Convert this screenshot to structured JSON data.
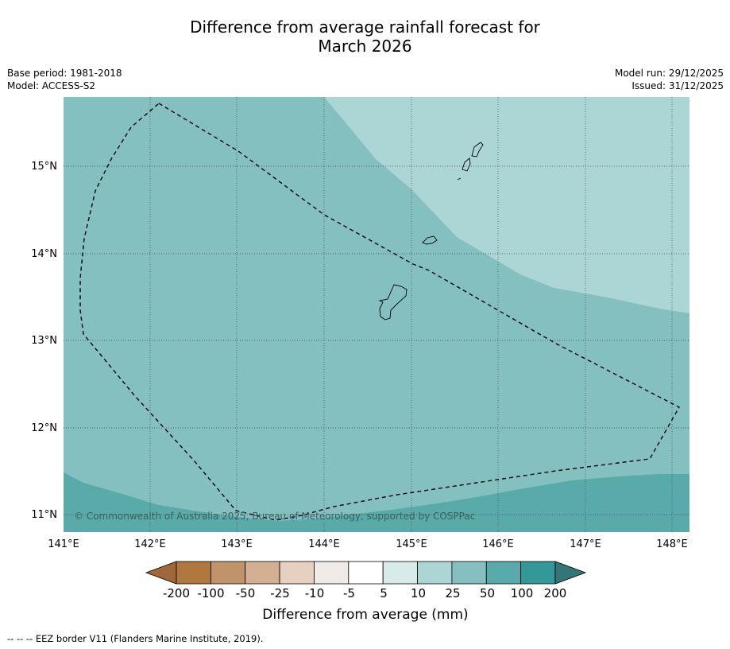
{
  "title_line1": "Difference from average rainfall forecast for",
  "title_line2": "March 2026",
  "base_period": "Base period: 1981-2018",
  "model": "Model: ACCESS-S2",
  "model_run": "Model run: 29/12/2025",
  "issued": "Issued: 31/12/2025",
  "copyright": "© Commonwealth of Australia 2025, Bureau of Meteorology, supported by COSPPac",
  "lon_labels": [
    "141°E",
    "142°E",
    "143°E",
    "144°E",
    "145°E",
    "146°E",
    "147°E",
    "148°E"
  ],
  "lat_labels": [
    "15°N",
    "14°N",
    "13°N",
    "12°N",
    "11°N"
  ],
  "colorbar": {
    "title": "Difference from average (mm)",
    "labels": [
      "-200",
      "-100",
      "-50",
      "-25",
      "-10",
      "-5",
      "5",
      "10",
      "25",
      "50",
      "100",
      "200"
    ],
    "colors": [
      "#a0683a",
      "#b0783f",
      "#c1936a",
      "#d3b092",
      "#e6d0bf",
      "#f0ebe6",
      "#ffffff",
      "#d6ebea",
      "#acd6d6",
      "#83c0bf",
      "#59abaa",
      "#339897",
      "#347676"
    ]
  },
  "map_colors": {
    "band_10_25": "#acd6d6",
    "band_25_50": "#83c0bf",
    "band_50_100": "#59abaa"
  },
  "footer": "--  --  -- EEZ border V11 (Flanders Marine Institute, 2019)."
}
